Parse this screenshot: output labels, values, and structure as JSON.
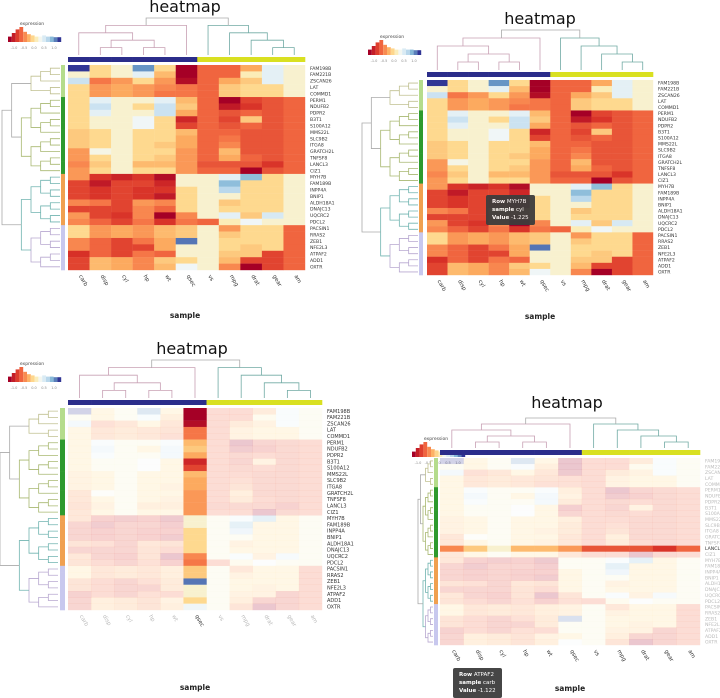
{
  "chart_data": {
    "type": "heatmap",
    "title": "heatmap",
    "xlabel": "sample",
    "legend_title": "expression",
    "legend_ticks": [
      "-1.0",
      "-0.5",
      "0.0",
      "0.5",
      "1.0"
    ],
    "colorscale": [
      "#a50026",
      "#d73027",
      "#f46d43",
      "#fdae61",
      "#fee8a0",
      "#f3f8f8",
      "#c5dff0",
      "#74add1",
      "#313695"
    ],
    "colorscale_domain": [
      -1.5,
      1.5
    ],
    "columns": [
      "carb",
      "disp",
      "cyl",
      "hp",
      "wt",
      "qsec",
      "vs",
      "mpg",
      "drat",
      "gear",
      "am"
    ],
    "column_groups": [
      1,
      1,
      1,
      1,
      1,
      1,
      2,
      2,
      2,
      2,
      2
    ],
    "column_group_colors": {
      "1": "#2b2d8a",
      "2": "#d9e021"
    },
    "rows": [
      "FAM198B",
      "FAM221B",
      "ZSCAN26",
      "LAT",
      "COMMD1",
      "PERM1",
      "NDUFB2",
      "PDPR2",
      "B3T1",
      "S100A12",
      "MMS22L",
      "SLC9B2",
      "ITGA8",
      "GRATCH2L",
      "TNFSF8",
      "LANCL3",
      "CIZ1",
      "MYH7B",
      "FAM189B",
      "INPP4A",
      "BNIP1",
      "ALDH18A1",
      "DNAJC13",
      "UQCRC2",
      "PDCL2",
      "PACSIN1",
      "RRAS2",
      "ZEB1",
      "NFE2L3",
      "ATPAF2",
      "ADD1",
      "OXTR"
    ],
    "row_groups": [
      1,
      1,
      1,
      1,
      1,
      2,
      2,
      2,
      2,
      2,
      2,
      2,
      2,
      2,
      2,
      2,
      2,
      3,
      3,
      3,
      3,
      3,
      3,
      3,
      3,
      4,
      4,
      4,
      4,
      4,
      4,
      4
    ],
    "row_group_colors": {
      "1": "#b5dc8c",
      "2": "#2e9a2e",
      "3": "#f0a050",
      "4": "#c8c8ee"
    },
    "values": [
      [
        1.5,
        -0.1,
        0.2,
        1.2,
        -0.1,
        -1.5,
        -0.8,
        -0.8,
        -0.4,
        0.5,
        0.2
      ],
      [
        0.2,
        -0.1,
        0.2,
        0.5,
        -0.3,
        -1.5,
        -0.8,
        -0.8,
        0.1,
        0.5,
        0.2
      ],
      [
        0.7,
        -0.7,
        -0.5,
        -0.1,
        -0.5,
        -1.4,
        -0.8,
        -0.4,
        -0.2,
        0.5,
        0.2
      ],
      [
        -0.1,
        -0.5,
        -0.4,
        -0.5,
        -0.6,
        -0.7,
        -0.8,
        -0.2,
        -0.1,
        -0.1,
        0.2
      ],
      [
        -0.1,
        -0.5,
        -0.4,
        -0.5,
        -0.7,
        -0.7,
        -0.8,
        -0.2,
        -0.1,
        -0.1,
        0.2
      ],
      [
        -0.1,
        0.5,
        0.2,
        0.2,
        0.5,
        -0.3,
        -0.8,
        -1.5,
        -1.0,
        -0.9,
        -0.8
      ],
      [
        -0.1,
        0.7,
        0.2,
        -0.1,
        0.7,
        -0.2,
        -0.8,
        -1.3,
        -1.1,
        -0.9,
        -0.8
      ],
      [
        -0.1,
        0.5,
        0.2,
        0.2,
        0.7,
        -0.4,
        -0.8,
        -0.9,
        -0.8,
        -0.9,
        -0.8
      ],
      [
        -0.1,
        0.2,
        0.2,
        0.4,
        -0.1,
        -1.2,
        -0.8,
        -1.0,
        -0.2,
        -0.9,
        -0.8
      ],
      [
        -0.1,
        0.2,
        0.2,
        0.4,
        -0.1,
        -1.0,
        -0.8,
        -0.9,
        -0.8,
        -0.9,
        -0.8
      ],
      [
        -0.2,
        -0.1,
        0.2,
        -0.1,
        -0.1,
        -0.3,
        -0.8,
        -0.8,
        -0.9,
        -0.9,
        -0.8
      ],
      [
        -0.2,
        -0.1,
        0.2,
        -0.1,
        -0.1,
        -0.4,
        -0.8,
        -0.7,
        -0.9,
        -0.9,
        -0.8
      ],
      [
        -0.2,
        -0.1,
        0.2,
        -0.1,
        -0.2,
        -0.4,
        -0.8,
        -0.6,
        -0.9,
        -0.9,
        -0.8
      ],
      [
        -0.5,
        0.3,
        0.2,
        -0.1,
        -0.1,
        -0.5,
        -0.8,
        -0.3,
        -0.9,
        -0.9,
        -0.8
      ],
      [
        -0.5,
        -0.1,
        0.2,
        -0.1,
        -0.2,
        -0.5,
        -0.8,
        -0.4,
        -0.8,
        -0.9,
        -0.8
      ],
      [
        -0.6,
        -0.2,
        0.2,
        -0.3,
        -0.3,
        -0.5,
        -0.9,
        -0.9,
        -0.9,
        -1.1,
        -0.8
      ],
      [
        -0.5,
        -0.1,
        0.2,
        -0.1,
        -0.1,
        -0.5,
        -0.8,
        -0.8,
        -1.5,
        -0.9,
        -0.8
      ],
      [
        -0.5,
        -1.1,
        -1.225,
        -1.1,
        -1.4,
        0.2,
        0.2,
        0.5,
        1.0,
        -0.1,
        0.2
      ],
      [
        -1.0,
        -1.3,
        -1.0,
        -1.0,
        -1.2,
        0.2,
        0.2,
        1.0,
        -0.1,
        -0.1,
        0.2
      ],
      [
        -1.0,
        -1.1,
        -1.0,
        -1.1,
        -1.1,
        -0.1,
        0.2,
        0.8,
        -0.1,
        -0.1,
        0.2
      ],
      [
        -1.0,
        -1.1,
        -1.0,
        -1.1,
        -1.3,
        -0.1,
        0.2,
        0.2,
        -0.1,
        -0.1,
        0.2
      ],
      [
        -0.6,
        -0.7,
        -1.0,
        -0.5,
        -0.6,
        -0.1,
        0.2,
        -0.2,
        -0.1,
        -0.1,
        0.2
      ],
      [
        -1.0,
        -1.0,
        -1.0,
        -0.6,
        -0.8,
        -0.1,
        0.2,
        -0.1,
        -0.1,
        -0.1,
        0.2
      ],
      [
        -0.5,
        -1.0,
        -1.1,
        -0.6,
        -1.5,
        -0.6,
        0.2,
        0.5,
        -0.2,
        0.6,
        0.2
      ],
      [
        -0.6,
        -0.8,
        -1.0,
        -0.7,
        -1.1,
        -0.7,
        -0.8,
        0.1,
        0.4,
        0.2,
        0.2
      ],
      [
        -0.1,
        -0.5,
        -0.4,
        -0.5,
        -0.3,
        -0.2,
        0.2,
        -0.5,
        -0.1,
        -0.1,
        -0.8
      ],
      [
        -0.1,
        -0.5,
        -0.4,
        -0.5,
        -0.3,
        -0.2,
        0.2,
        -0.2,
        -0.1,
        -0.1,
        -0.8
      ],
      [
        -0.6,
        -0.8,
        -1.0,
        -0.7,
        -0.4,
        1.3,
        0.2,
        -0.1,
        -0.1,
        -0.1,
        -0.8
      ],
      [
        -0.6,
        -0.8,
        -1.0,
        -1.0,
        -0.4,
        0.2,
        0.2,
        -0.1,
        -0.2,
        -0.1,
        -0.8
      ],
      [
        -1.122,
        -0.8,
        -1.0,
        -0.7,
        -0.8,
        0.2,
        0.2,
        -0.2,
        -0.2,
        -1.0,
        -0.8
      ],
      [
        -1.0,
        -0.3,
        -0.4,
        -0.6,
        -0.2,
        -0.1,
        0.2,
        -0.3,
        -1.0,
        -1.0,
        -0.8
      ],
      [
        -1.0,
        -0.3,
        -0.4,
        -0.6,
        -0.3,
        0.4,
        0.2,
        -0.6,
        -1.5,
        -1.0,
        -0.8
      ]
    ],
    "column_dendrogram": [
      [
        [
          0,
          [
            [
              1,
              2
            ],
            [
              3,
              4
            ]
          ]
        ],
        5
      ],
      [
        6,
        [
          7,
          [
            8,
            [
              9,
              10
            ]
          ]
        ]
      ]
    ],
    "grid": false
  },
  "views": [
    {
      "highlight": "none"
    },
    {
      "highlight": "none",
      "tooltip": {
        "row_label": "Row",
        "row": "MYH7B",
        "sample_label": "sample",
        "sample": "cyl",
        "value_label": "Value",
        "value": "-1.225"
      }
    },
    {
      "highlight": "column",
      "highlight_target": "qsec"
    },
    {
      "highlight": "row",
      "highlight_target": "LANCL3",
      "tooltip": {
        "row_label": "Row",
        "row": "ATPAF2",
        "sample_label": "sample",
        "sample": "carb",
        "value_label": "Value",
        "value": "-1.122"
      }
    }
  ]
}
